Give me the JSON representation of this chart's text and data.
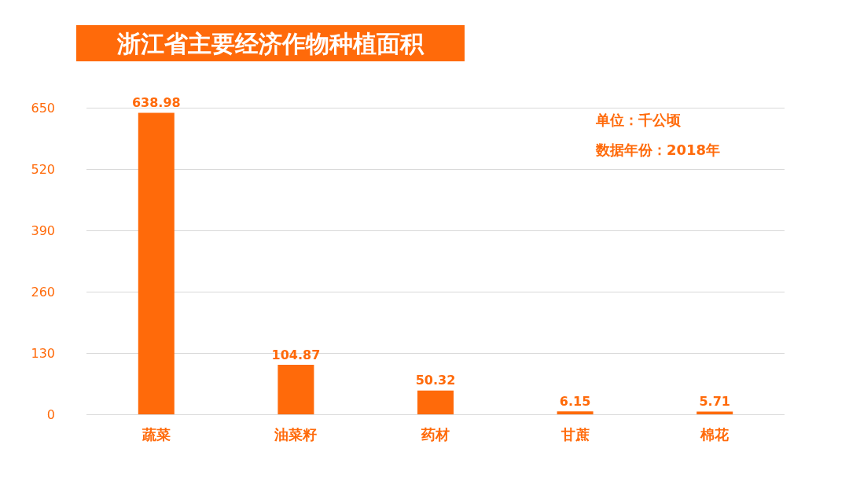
{
  "chart_data": {
    "type": "bar",
    "title": "浙江省主要经济作物种植面积",
    "categories": [
      "蔬菜",
      "油菜籽",
      "药材",
      "甘蔗",
      "棉花"
    ],
    "values": [
      638.98,
      104.87,
      50.32,
      6.15,
      5.71
    ],
    "color": "#ff6a0a",
    "ylim": [
      0,
      650
    ],
    "yticks": [
      0,
      130,
      260,
      390,
      520,
      650
    ],
    "grid": "y",
    "data_labels": true,
    "annotations": [
      "单位：千公顷",
      "数据年份：2018年"
    ]
  }
}
